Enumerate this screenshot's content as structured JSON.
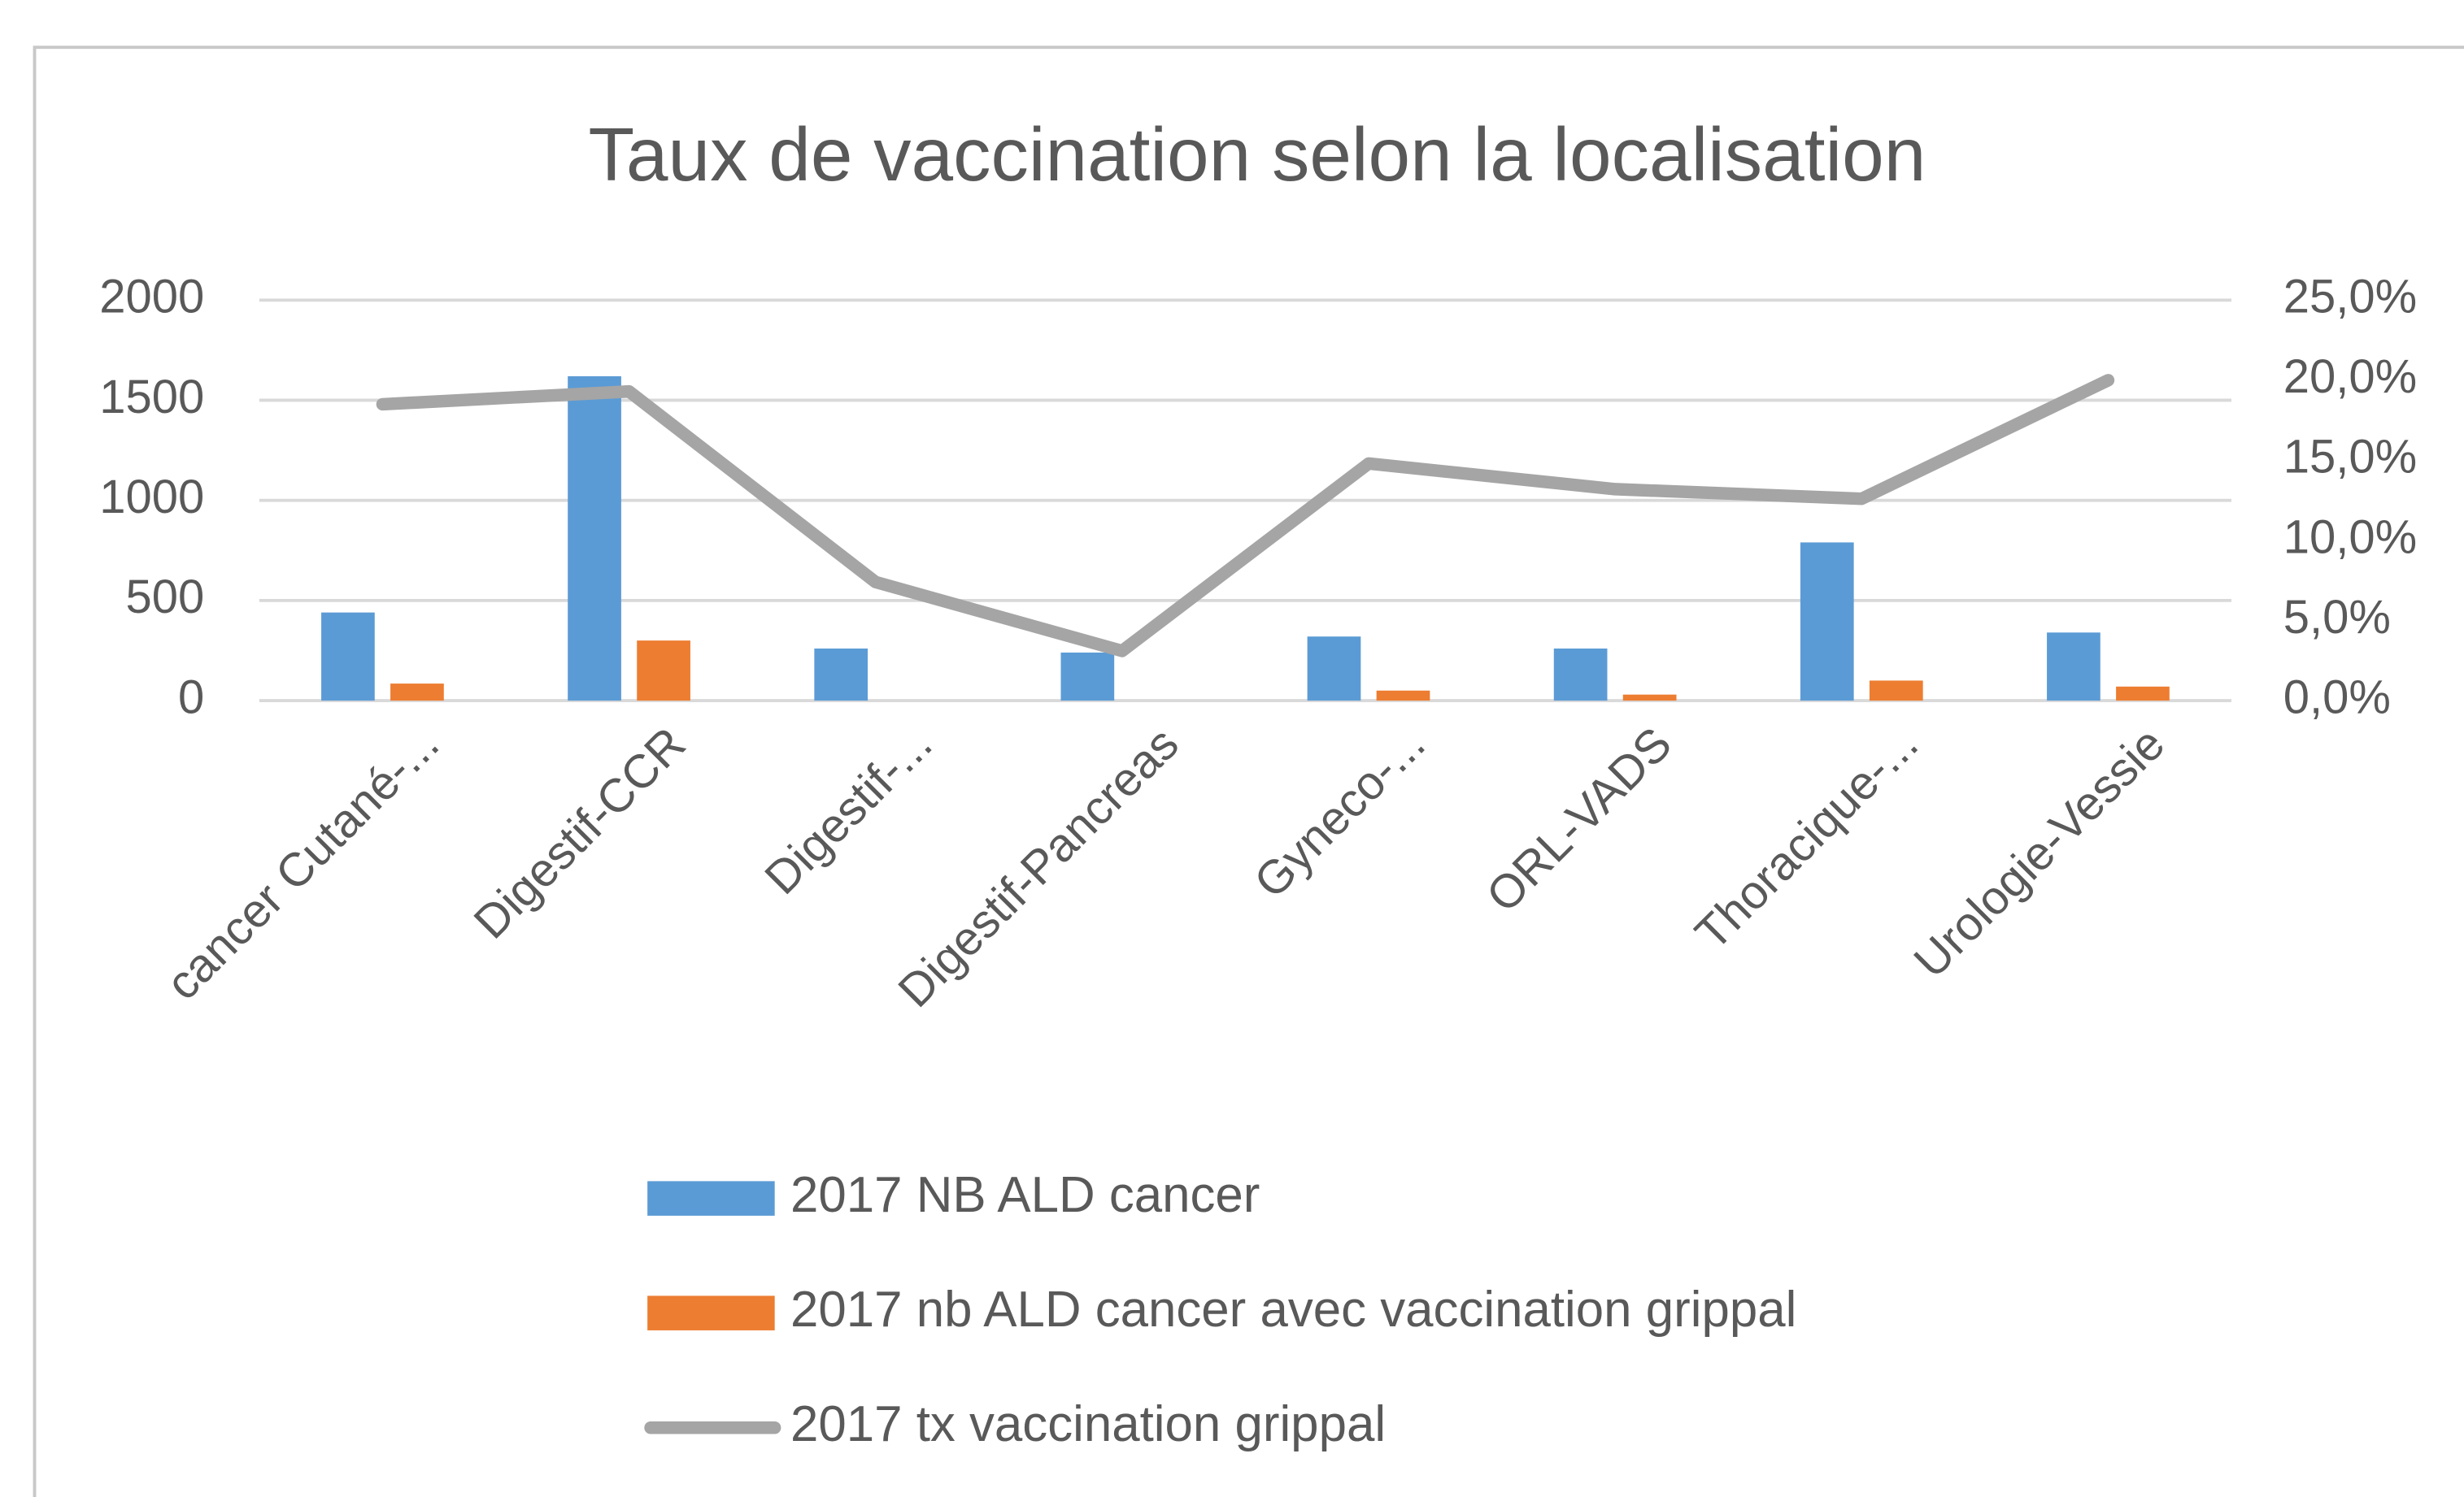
{
  "chart_data": {
    "type": "bar",
    "title": "Taux de vaccination selon la localisation",
    "categories": [
      "cancer Cutané-...",
      "Digestif-CCR",
      "Digestif-...",
      "Digestif-Pancreas",
      "Gyneco-...",
      "ORL-VADS",
      "Thoracique-...",
      "Urologie-Vessie"
    ],
    "series": [
      {
        "name": "2017 NB ALD cancer",
        "color": "#5b9bd5",
        "values": [
          440,
          1620,
          260,
          240,
          320,
          260,
          790,
          340
        ]
      },
      {
        "name": "2017 nb ALD cancer avec vaccination grippal",
        "color": "#ed7d31",
        "values": [
          85,
          300,
          0,
          0,
          50,
          30,
          100,
          70
        ]
      },
      {
        "name": "2017 tx vaccination grippal",
        "color": "#a5a5a5",
        "type": "line",
        "axis": "y2",
        "values": [
          18.5,
          19.3,
          7.4,
          3.1,
          14.8,
          13.2,
          12.6,
          20.0
        ]
      }
    ],
    "ylim": [
      0,
      2000
    ],
    "yticks": [
      0,
      500,
      1000,
      1500,
      2000
    ],
    "y2lim": [
      0,
      25
    ],
    "y2ticks": [
      {
        "value": 0,
        "label": "0,0%"
      },
      {
        "value": 5,
        "label": "5,0%"
      },
      {
        "value": 10,
        "label": "10,0%"
      },
      {
        "value": 15,
        "label": "15,0%"
      },
      {
        "value": 20,
        "label": "20,0%"
      },
      {
        "value": 25,
        "label": "25,0%"
      }
    ],
    "grid": true,
    "legend": "bottom"
  }
}
